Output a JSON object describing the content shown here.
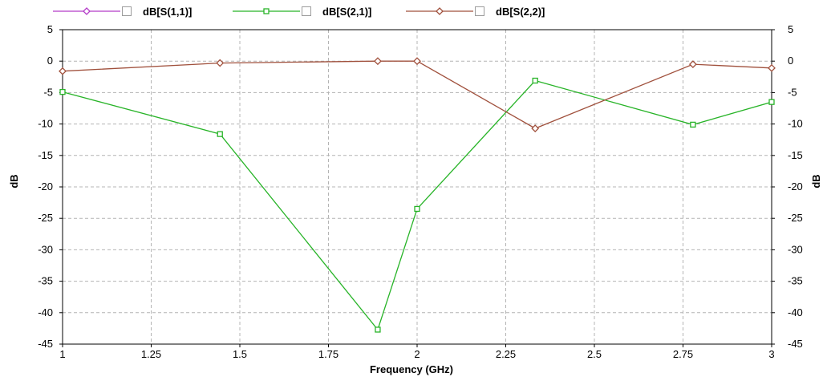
{
  "chart_data": {
    "type": "line",
    "xlabel": "Frequency (GHz)",
    "ylabel": "dB",
    "y2label": "dB",
    "xlim": [
      1,
      3
    ],
    "ylim": [
      -45,
      5
    ],
    "xticks": [
      "1",
      "1.25",
      "1.5",
      "1.75",
      "2",
      "2.25",
      "2.5",
      "2.75",
      "3"
    ],
    "yticks": [
      "5",
      "0",
      "-5",
      "-10",
      "-15",
      "-20",
      "-25",
      "-30",
      "-35",
      "-40",
      "-45"
    ],
    "grid": true,
    "legend_position": "top",
    "series": [
      {
        "name": "dB[S(1,1)]",
        "color": "#b43cc8",
        "marker": "diamond",
        "x": [],
        "y": []
      },
      {
        "name": "dB[S(2,1)]",
        "color": "#28b428",
        "marker": "square",
        "x": [
          1.0,
          1.444,
          1.889,
          2.0,
          2.333,
          2.778,
          3.0
        ],
        "y": [
          -4.9,
          -11.6,
          -42.7,
          -23.5,
          -3.1,
          -10.1,
          -6.5
        ]
      },
      {
        "name": "dB[S(2,2)]",
        "color": "#a0503c",
        "marker": "diamond",
        "x": [
          1.0,
          1.444,
          1.889,
          2.0,
          2.333,
          2.778,
          3.0
        ],
        "y": [
          -1.6,
          -0.3,
          0.0,
          0.0,
          -10.7,
          -0.5,
          -1.1
        ]
      }
    ]
  }
}
